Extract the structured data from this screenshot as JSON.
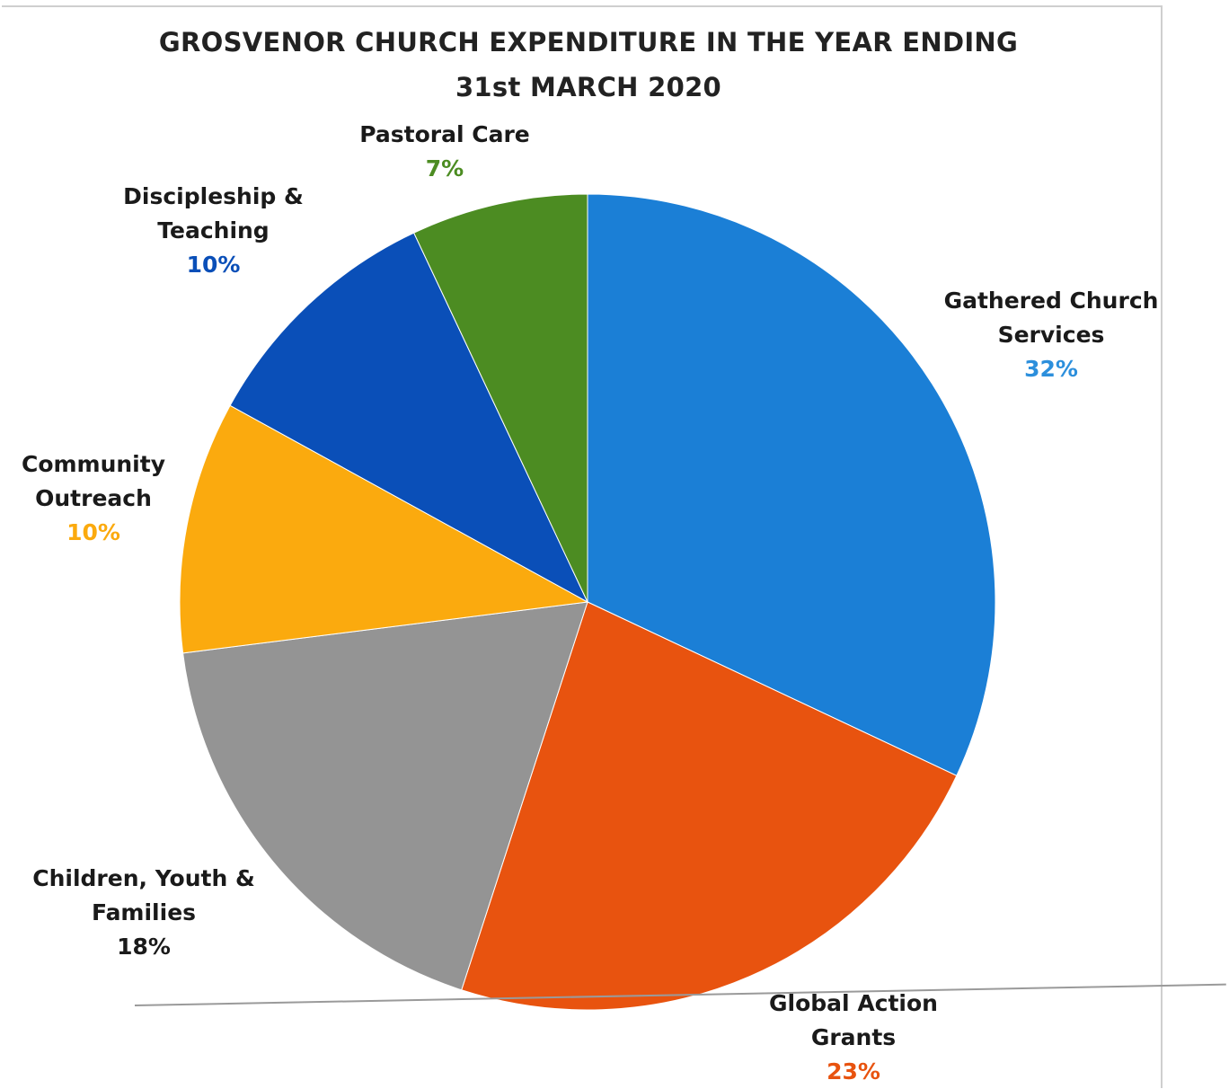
{
  "chart_data": {
    "type": "pie",
    "title_lines": [
      "GROSVENOR CHURCH EXPENDITURE IN THE YEAR ENDING",
      "31st MARCH 2020"
    ],
    "slices": [
      {
        "label_lines": [
          "Gathered Church",
          "Services"
        ],
        "value": 32,
        "pct_text": "32%",
        "color": "#1b7fd6"
      },
      {
        "label_lines": [
          "Global Action",
          "Grants"
        ],
        "value": 23,
        "pct_text": "23%",
        "color": "#e8530f"
      },
      {
        "label_lines": [
          "Children, Youth &",
          "Families"
        ],
        "value": 18,
        "pct_text": "18%",
        "color": "#949494"
      },
      {
        "label_lines": [
          "Community",
          "Outreach"
        ],
        "value": 10,
        "pct_text": "10%",
        "color": "#fbaa0e"
      },
      {
        "label_lines": [
          "Discipleship &",
          "Teaching"
        ],
        "value": 10,
        "pct_text": "10%",
        "color": "#0a4fb8"
      },
      {
        "label_lines": [
          "Pastoral Care"
        ],
        "value": 7,
        "pct_text": "7%",
        "color": "#4c8c22"
      }
    ],
    "pct_label_colors": [
      "#2c8fdc",
      "#e8530f",
      "#1a1a1a",
      "#fbaa0e",
      "#0a4fb8",
      "#4c8c22"
    ],
    "start_angle": "12 o'clock",
    "direction": "clockwise",
    "legend": "none"
  }
}
